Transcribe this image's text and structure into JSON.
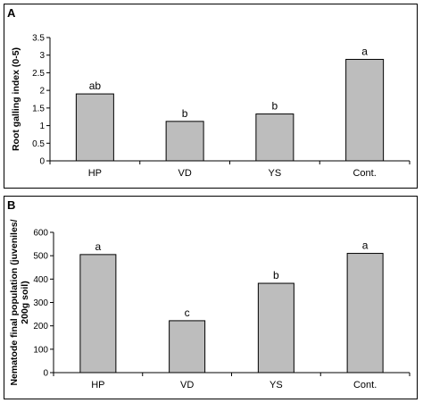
{
  "chart_data": [
    {
      "type": "bar",
      "panel_label": "A",
      "ylabel": "Root galling index (0-5)",
      "xlabel": "",
      "categories": [
        "HP",
        "VD",
        "YS",
        "Cont."
      ],
      "values": [
        1.9,
        1.12,
        1.33,
        2.88
      ],
      "annotations": [
        "ab",
        "b",
        "b",
        "a"
      ],
      "ylim": [
        0,
        3.5
      ],
      "yticks": [
        0,
        0.5,
        1,
        1.5,
        2,
        2.5,
        3,
        3.5
      ],
      "ytick_labels": [
        "0",
        "0.5",
        "1",
        "1.5",
        "2",
        "2.5",
        "3",
        "3.5"
      ],
      "grid": false,
      "bar_color": "#bdbdbd"
    },
    {
      "type": "bar",
      "panel_label": "B",
      "ylabel_lines": [
        "Nematode final population (juveniles/",
        "200g soil)"
      ],
      "xlabel": "",
      "categories": [
        "HP",
        "VD",
        "YS",
        "Cont."
      ],
      "values": [
        505,
        222,
        382,
        510
      ],
      "annotations": [
        "a",
        "c",
        "b",
        "a"
      ],
      "ylim": [
        0,
        600
      ],
      "yticks": [
        0,
        100,
        200,
        300,
        400,
        500,
        600
      ],
      "ytick_labels": [
        "0",
        "100",
        "200",
        "300",
        "400",
        "500",
        "600"
      ],
      "grid": false,
      "bar_color": "#bdbdbd"
    }
  ]
}
